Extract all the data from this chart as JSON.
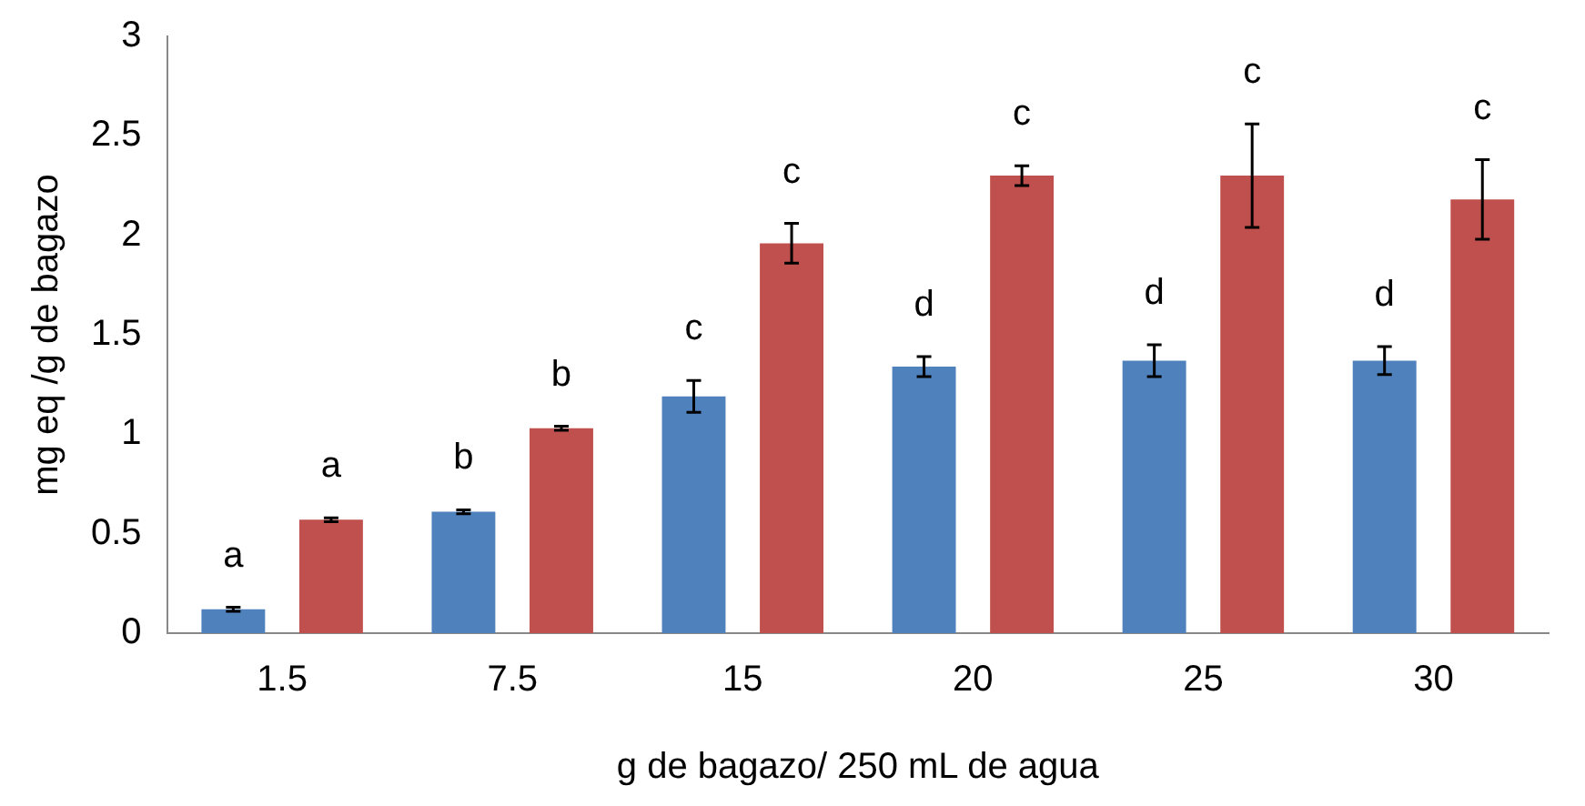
{
  "chart_data": {
    "type": "bar",
    "xlabel": "g de bagazo/ 250 mL de agua",
    "ylabel": "mg eq /g de bagazo",
    "categories": [
      "1.5",
      "7.5",
      "15",
      "20",
      "25",
      "30"
    ],
    "series": [
      {
        "color": "#4f81bd",
        "values": [
          0.12,
          0.61,
          1.19,
          1.34,
          1.37,
          1.37
        ],
        "errors": [
          0.01,
          0.01,
          0.08,
          0.05,
          0.08,
          0.07
        ],
        "value_labels": [
          "a",
          "b",
          "c",
          "d",
          "d",
          "d"
        ]
      },
      {
        "color": "#c0504d",
        "values": [
          0.57,
          1.03,
          1.96,
          2.3,
          2.3,
          2.18
        ],
        "errors": [
          0.01,
          0.01,
          0.1,
          0.05,
          0.26,
          0.2
        ],
        "value_labels": [
          "a",
          "b",
          "c",
          "c",
          "c",
          "c"
        ]
      }
    ],
    "ylim": [
      0,
      3
    ],
    "yticks": [
      0,
      0.5,
      1,
      1.5,
      2,
      2.5,
      3
    ],
    "grid": false,
    "legend": false
  }
}
